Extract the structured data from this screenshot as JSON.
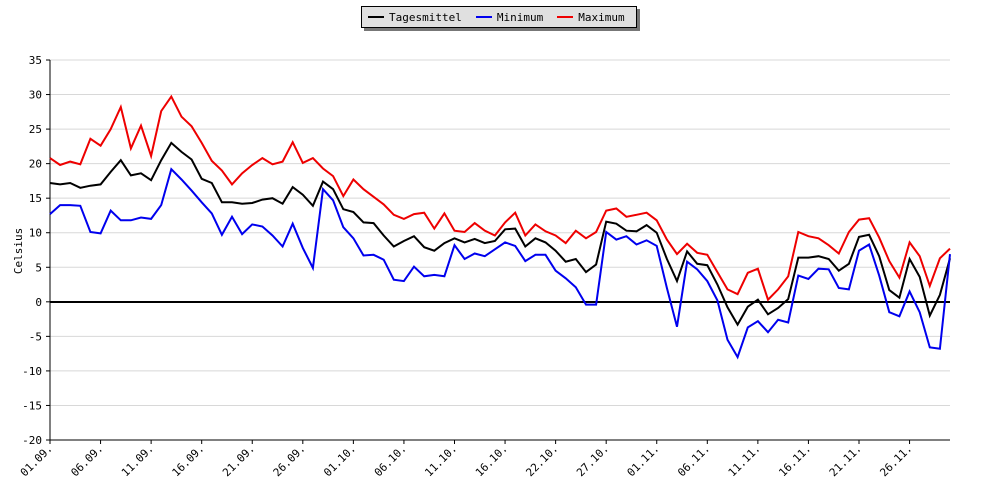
{
  "chart_data": {
    "type": "line",
    "ylabel": "Celsius",
    "ylim": [
      -20,
      35
    ],
    "yticks": [
      35,
      30,
      25,
      20,
      15,
      10,
      5,
      0,
      -5,
      -10,
      -15,
      -20
    ],
    "xtick_labels": [
      "01.09.",
      "06.09.",
      "11.09.",
      "16.09.",
      "21.09.",
      "26.09.",
      "01.10.",
      "06.10.",
      "11.10.",
      "16.10.",
      "22.10.",
      "27.10.",
      "01.11.",
      "06.11.",
      "11.11.",
      "16.11.",
      "21.11.",
      "26.11."
    ],
    "grid": true,
    "legend_position": "top-center",
    "series": [
      {
        "name": "Tagesmittel",
        "color": "#000000",
        "values": [
          17.2,
          17.0,
          17.2,
          16.5,
          16.8,
          17.0,
          18.8,
          20.5,
          18.3,
          18.6,
          17.6,
          20.5,
          23.0,
          21.7,
          20.6,
          17.8,
          17.2,
          14.4,
          14.4,
          14.2,
          14.3,
          14.8,
          15.0,
          14.2,
          16.6,
          15.5,
          13.9,
          17.4,
          16.3,
          13.4,
          13.0,
          11.5,
          11.4,
          9.6,
          8.0,
          8.8,
          9.5,
          7.9,
          7.4,
          8.5,
          9.2,
          8.6,
          9.1,
          8.5,
          8.8,
          10.5,
          10.6,
          8.0,
          9.2,
          8.6,
          7.4,
          5.8,
          6.2,
          4.3,
          5.4,
          11.6,
          11.3,
          10.3,
          10.2,
          11.1,
          10.0,
          6.2,
          3.0,
          7.3,
          5.5,
          5.3,
          2.5,
          -0.8,
          -3.3,
          -0.7,
          0.3,
          -1.8,
          -0.9,
          0.4,
          6.4,
          6.4,
          6.6,
          6.2,
          4.5,
          5.5,
          9.4,
          9.7,
          6.6,
          1.7,
          0.6,
          6.2,
          3.6,
          -2.0,
          1.0,
          6.3
        ]
      },
      {
        "name": "Minimum",
        "color": "#0000ee",
        "values": [
          12.7,
          14.0,
          14.0,
          13.9,
          10.1,
          9.9,
          13.2,
          11.8,
          11.8,
          12.2,
          12.0,
          14.0,
          19.2,
          17.7,
          16.1,
          14.4,
          12.8,
          9.7,
          12.3,
          9.8,
          11.2,
          10.9,
          9.6,
          8.0,
          11.3,
          7.8,
          4.9,
          16.3,
          14.7,
          10.8,
          9.2,
          6.7,
          6.8,
          6.1,
          3.2,
          3.0,
          5.1,
          3.7,
          3.9,
          3.7,
          8.2,
          6.2,
          7.0,
          6.6,
          7.6,
          8.6,
          8.1,
          5.9,
          6.8,
          6.8,
          4.5,
          3.4,
          2.1,
          -0.4,
          -0.4,
          10.1,
          9.0,
          9.5,
          8.3,
          8.9,
          8.1,
          2.0,
          -3.6,
          5.8,
          4.7,
          3.0,
          0.2,
          -5.5,
          -8.0,
          -3.7,
          -2.8,
          -4.4,
          -2.6,
          -3.0,
          3.8,
          3.3,
          4.8,
          4.7,
          2.0,
          1.8,
          7.4,
          8.3,
          3.8,
          -1.5,
          -2.1,
          1.5,
          -1.5,
          -6.6,
          -6.8,
          6.9
        ]
      },
      {
        "name": "Maximum",
        "color": "#ee0000",
        "values": [
          20.8,
          19.8,
          20.3,
          19.9,
          23.6,
          22.6,
          25.0,
          28.2,
          22.2,
          25.5,
          21.1,
          27.6,
          29.7,
          26.8,
          25.4,
          23.0,
          20.4,
          19.0,
          17.0,
          18.6,
          19.8,
          20.8,
          19.9,
          20.3,
          23.1,
          20.1,
          20.8,
          19.3,
          18.2,
          15.3,
          17.7,
          16.3,
          15.2,
          14.1,
          12.6,
          12.0,
          12.7,
          12.9,
          10.6,
          12.8,
          10.3,
          10.1,
          11.4,
          10.3,
          9.6,
          11.5,
          12.9,
          9.6,
          11.2,
          10.2,
          9.6,
          8.5,
          10.3,
          9.2,
          10.1,
          13.2,
          13.5,
          12.3,
          12.6,
          12.9,
          11.8,
          9.0,
          6.9,
          8.4,
          7.1,
          6.8,
          4.3,
          1.8,
          1.1,
          4.2,
          4.8,
          0.3,
          1.8,
          3.7,
          10.1,
          9.5,
          9.2,
          8.2,
          7.0,
          10.1,
          11.9,
          12.1,
          9.3,
          5.9,
          3.5,
          8.6,
          6.6,
          2.3,
          6.3,
          7.7
        ]
      }
    ]
  }
}
